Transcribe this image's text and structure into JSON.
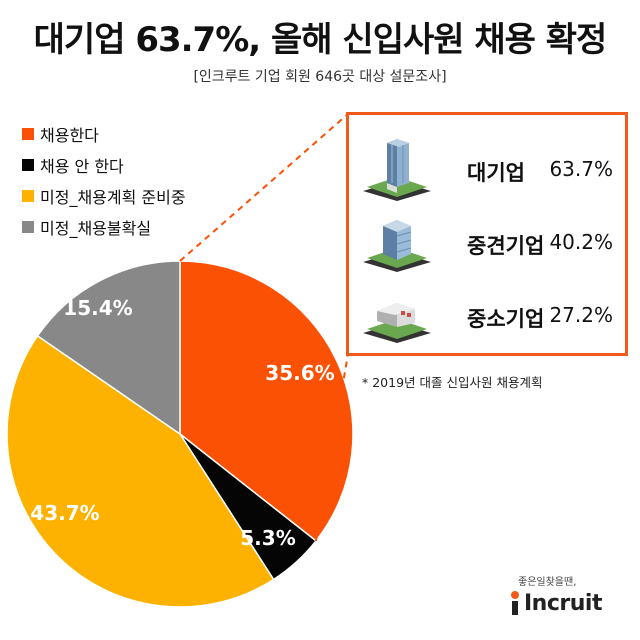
{
  "title": "대기업 63.7%, 올해 신입사원 채용 확정",
  "subtitle": "[인크루트 기업 회원 646곳 대상 설문조사]",
  "chart_data": {
    "type": "pie",
    "categories": [
      "채용한다",
      "채용 안 한다",
      "미정_채용계획 준비중",
      "미정_채용불확실"
    ],
    "values": [
      35.6,
      5.3,
      43.7,
      15.4
    ],
    "labels": [
      "35.6%",
      "5.3%",
      "43.7%",
      "15.4%"
    ],
    "colors": [
      "#fb5104",
      "#050505",
      "#fdb100",
      "#888888"
    ],
    "legend_position": "top-left"
  },
  "detail": {
    "items": [
      {
        "name": "대기업",
        "value": "63.7%",
        "icon": "skyscraper-icon"
      },
      {
        "name": "중견기업",
        "value": "40.2%",
        "icon": "office-tower-icon"
      },
      {
        "name": "중소기업",
        "value": "27.2%",
        "icon": "small-office-icon"
      }
    ],
    "border_color": "#f05a1a"
  },
  "footnote": "* 2019년 대졸 신입사원 채용계획",
  "brand": {
    "slogan": "좋은일찾을땐,",
    "name": "Incruit"
  }
}
